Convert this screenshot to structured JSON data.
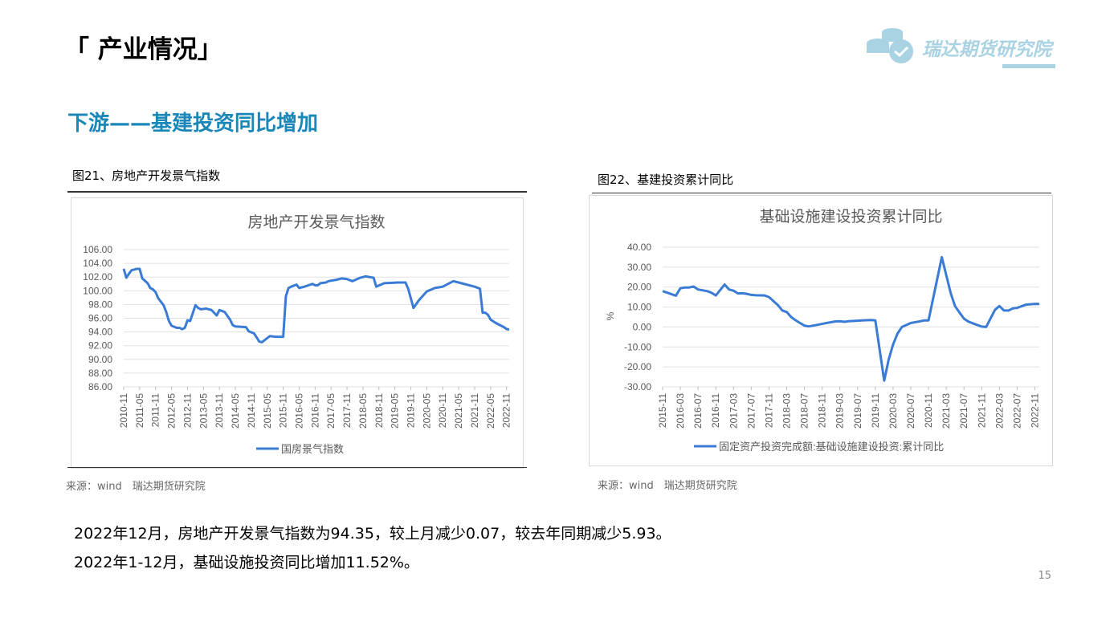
{
  "header": {
    "title": "「 产业情况」",
    "subtitle": "下游——基建投资同比增加",
    "logo_text": "瑞达期货研究院"
  },
  "figures": [
    {
      "caption": "图21、房地产开发景气指数",
      "source": "来源：wind　瑞达期货研究院"
    },
    {
      "caption": "图22、基建投资累计同比",
      "source": "来源：wind　瑞达期货研究院"
    }
  ],
  "notes": [
    "2022年12月，房地产开发景气指数为94.35，较上月减少0.07，较去年同期减少5.93。",
    "2022年1-12月，基础设施投资同比增加11.52%。"
  ],
  "page_number": "15",
  "colors": {
    "line": "#3a7bd5",
    "accent": "#1a87b9"
  },
  "chart_data": [
    {
      "type": "line",
      "title": "房地产开发景气指数",
      "xlabel": "",
      "ylabel": "",
      "ylim": [
        86,
        106
      ],
      "ystep": 2,
      "ydecimals": 2,
      "x_ticks": [
        "2010-11",
        "2011-05",
        "2011-11",
        "2012-05",
        "2012-11",
        "2013-05",
        "2013-11",
        "2014-05",
        "2014-11",
        "2015-05",
        "2015-11",
        "2016-05",
        "2016-11",
        "2017-05",
        "2017-11",
        "2018-05",
        "2018-11",
        "2019-05",
        "2019-11",
        "2020-05",
        "2020-11",
        "2021-05",
        "2021-11",
        "2022-05",
        "2022-11"
      ],
      "x_months": [
        0,
        145
      ],
      "legend": "国房景气指数",
      "legend_position": "bottom",
      "grid": true,
      "series": [
        {
          "name": "国房景气指数",
          "points": [
            [
              0,
              103.2
            ],
            [
              1,
              101.9
            ],
            [
              2,
              102.5
            ],
            [
              3,
              103.0
            ],
            [
              5,
              103.2
            ],
            [
              6,
              103.2
            ],
            [
              7,
              101.8
            ],
            [
              9,
              101.1
            ],
            [
              10,
              100.4
            ],
            [
              11,
              100.2
            ],
            [
              12,
              99.8
            ],
            [
              13,
              98.9
            ],
            [
              15,
              97.9
            ],
            [
              16,
              96.9
            ],
            [
              17,
              95.6
            ],
            [
              18,
              94.9
            ],
            [
              20,
              94.6
            ],
            [
              21,
              94.6
            ],
            [
              22,
              94.4
            ],
            [
              23,
              94.6
            ],
            [
              24,
              95.7
            ],
            [
              25,
              95.6
            ],
            [
              27,
              97.9
            ],
            [
              28,
              97.5
            ],
            [
              29,
              97.3
            ],
            [
              31,
              97.4
            ],
            [
              33,
              97.2
            ],
            [
              35,
              96.4
            ],
            [
              36,
              97.2
            ],
            [
              38,
              96.9
            ],
            [
              40,
              95.8
            ],
            [
              41,
              95.0
            ],
            [
              42,
              94.8
            ],
            [
              46,
              94.7
            ],
            [
              47,
              94.1
            ],
            [
              49,
              93.8
            ],
            [
              51,
              92.6
            ],
            [
              52,
              92.5
            ],
            [
              53,
              92.8
            ],
            [
              55,
              93.4
            ],
            [
              57,
              93.3
            ],
            [
              60,
              93.3
            ],
            [
              61,
              99.2
            ],
            [
              62,
              100.4
            ],
            [
              63,
              100.6
            ],
            [
              65,
              100.9
            ],
            [
              66,
              100.4
            ],
            [
              68,
              100.6
            ],
            [
              71,
              101.0
            ],
            [
              72,
              100.8
            ],
            [
              73,
              100.8
            ],
            [
              74,
              101.1
            ],
            [
              76,
              101.2
            ],
            [
              77,
              101.4
            ],
            [
              80,
              101.6
            ],
            [
              82,
              101.8
            ],
            [
              84,
              101.7
            ],
            [
              86,
              101.4
            ],
            [
              89,
              101.9
            ],
            [
              91,
              102.1
            ],
            [
              94,
              101.9
            ],
            [
              95,
              100.6
            ],
            [
              98,
              101.1
            ],
            [
              103,
              101.2
            ],
            [
              106,
              101.2
            ],
            [
              107,
              100.3
            ],
            [
              109,
              97.5
            ],
            [
              111,
              98.6
            ],
            [
              114,
              99.9
            ],
            [
              117,
              100.4
            ],
            [
              120,
              100.6
            ],
            [
              124,
              101.4
            ],
            [
              128,
              101.0
            ],
            [
              132,
              100.6
            ],
            [
              134,
              100.3
            ],
            [
              135,
              96.8
            ],
            [
              136,
              96.8
            ],
            [
              137,
              96.5
            ],
            [
              138,
              95.8
            ],
            [
              140,
              95.3
            ],
            [
              143,
              94.7
            ],
            [
              144,
              94.42
            ],
            [
              145,
              94.35
            ]
          ]
        }
      ]
    },
    {
      "type": "line",
      "title": "基础设施建设投资累计同比",
      "xlabel": "",
      "ylabel": "%",
      "ylim": [
        -30,
        40
      ],
      "ystep": 10,
      "ydecimals": 2,
      "x_ticks": [
        "2015-11",
        "2016-03",
        "2016-07",
        "2016-11",
        "2017-03",
        "2017-07",
        "2017-11",
        "2018-03",
        "2018-07",
        "2018-11",
        "2019-03",
        "2019-07",
        "2019-11",
        "2020-03",
        "2020-07",
        "2020-11",
        "2021-03",
        "2021-07",
        "2021-11",
        "2022-03",
        "2022-07",
        "2022-11"
      ],
      "x_months": [
        0,
        85
      ],
      "legend": "固定资产投资完成额:基础设施建设投资:累计同比",
      "legend_position": "bottom",
      "grid": true,
      "series": [
        {
          "name": "固定资产投资完成额:基础设施建设投资:累计同比",
          "points": [
            [
              0,
              18.0
            ],
            [
              3,
              15.7
            ],
            [
              4,
              19.4
            ],
            [
              5,
              19.8
            ],
            [
              6,
              19.8
            ],
            [
              7,
              20.3
            ],
            [
              8,
              18.8
            ],
            [
              10,
              18.0
            ],
            [
              11,
              17.2
            ],
            [
              12,
              15.8
            ],
            [
              14,
              21.3
            ],
            [
              15,
              18.8
            ],
            [
              16,
              18.2
            ],
            [
              17,
              16.8
            ],
            [
              18,
              16.9
            ],
            [
              19,
              16.6
            ],
            [
              20,
              16.1
            ],
            [
              21,
              15.9
            ],
            [
              23,
              15.8
            ],
            [
              24,
              15.0
            ],
            [
              25,
              13.0
            ],
            [
              26,
              11.0
            ],
            [
              27,
              8.3
            ],
            [
              28,
              7.5
            ],
            [
              29,
              5.0
            ],
            [
              30,
              3.4
            ],
            [
              31,
              2.0
            ],
            [
              32,
              0.7
            ],
            [
              33,
              0.3
            ],
            [
              35,
              1.1
            ],
            [
              37,
              2.0
            ],
            [
              39,
              2.8
            ],
            [
              40,
              2.9
            ],
            [
              41,
              2.6
            ],
            [
              42,
              2.9
            ],
            [
              45,
              3.3
            ],
            [
              47,
              3.5
            ],
            [
              48,
              3.3
            ],
            [
              50,
              -26.9
            ],
            [
              51,
              -16.4
            ],
            [
              52,
              -8.8
            ],
            [
              53,
              -3.3
            ],
            [
              54,
              0.0
            ],
            [
              56,
              2.0
            ],
            [
              58,
              2.8
            ],
            [
              59,
              3.3
            ],
            [
              60,
              3.3
            ],
            [
              63,
              35.0
            ],
            [
              64,
              26.0
            ],
            [
              65,
              17.0
            ],
            [
              66,
              10.4
            ],
            [
              67,
              7.2
            ],
            [
              68,
              4.2
            ],
            [
              69,
              2.7
            ],
            [
              71,
              1.0
            ],
            [
              72,
              0.2
            ],
            [
              73,
              0.0
            ],
            [
              75,
              8.6
            ],
            [
              76,
              10.5
            ],
            [
              77,
              8.3
            ],
            [
              78,
              8.2
            ],
            [
              79,
              9.3
            ],
            [
              80,
              9.6
            ],
            [
              82,
              11.2
            ],
            [
              84,
              11.6
            ],
            [
              85,
              11.52
            ]
          ]
        }
      ]
    }
  ]
}
